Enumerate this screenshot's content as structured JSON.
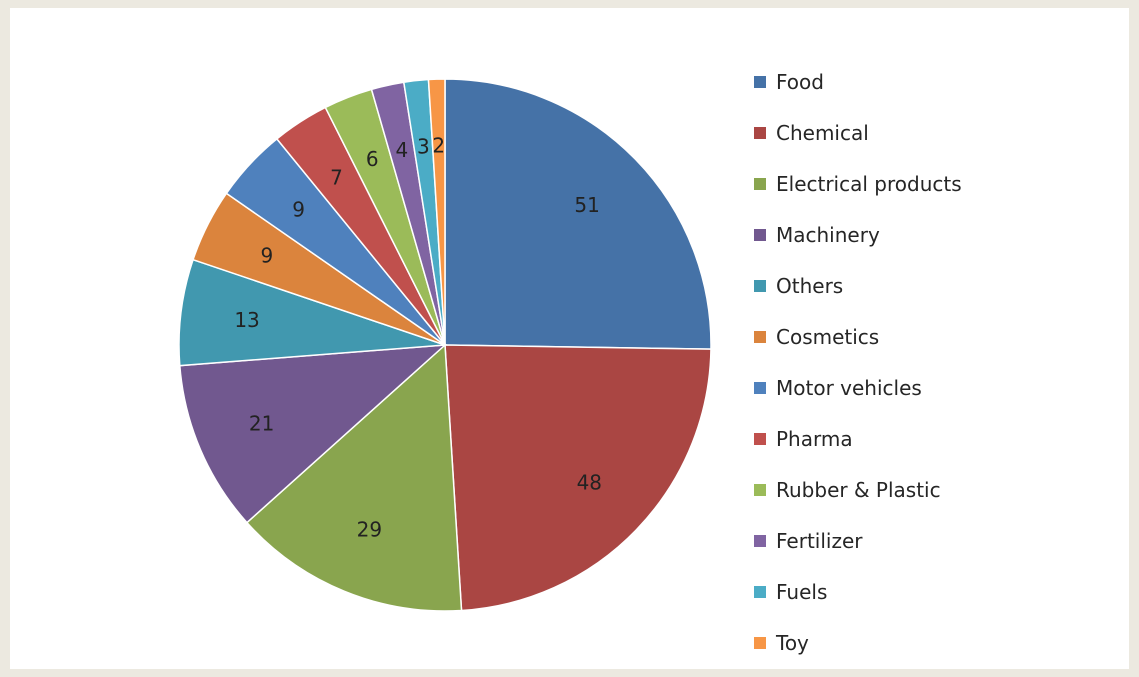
{
  "chart_data": {
    "type": "pie",
    "title": "",
    "start": "12 o'clock",
    "direction": "clockwise",
    "legend_position": "right",
    "slices": [
      {
        "label": "Food",
        "value": 51,
        "color": "#4572a7"
      },
      {
        "label": "Chemical",
        "value": 48,
        "color": "#aa4643"
      },
      {
        "label": "Electrical products",
        "value": 29,
        "color": "#89a54e"
      },
      {
        "label": "Machinery",
        "value": 21,
        "color": "#71588f"
      },
      {
        "label": "Others",
        "value": 13,
        "color": "#4198af"
      },
      {
        "label": "Cosmetics",
        "value": 9,
        "color": "#db843d"
      },
      {
        "label": "Motor vehicles",
        "value": 9,
        "color": "#4f81bd"
      },
      {
        "label": "Pharma",
        "value": 7,
        "color": "#c0504d"
      },
      {
        "label": "Rubber & Plastic",
        "value": 6,
        "color": "#9bbb59"
      },
      {
        "label": "Fertilizer",
        "value": 4,
        "color": "#8064a2"
      },
      {
        "label": "Fuels",
        "value": 3,
        "color": "#4bacc6"
      },
      {
        "label": "Toy",
        "value": 2,
        "color": "#f79646"
      }
    ]
  }
}
